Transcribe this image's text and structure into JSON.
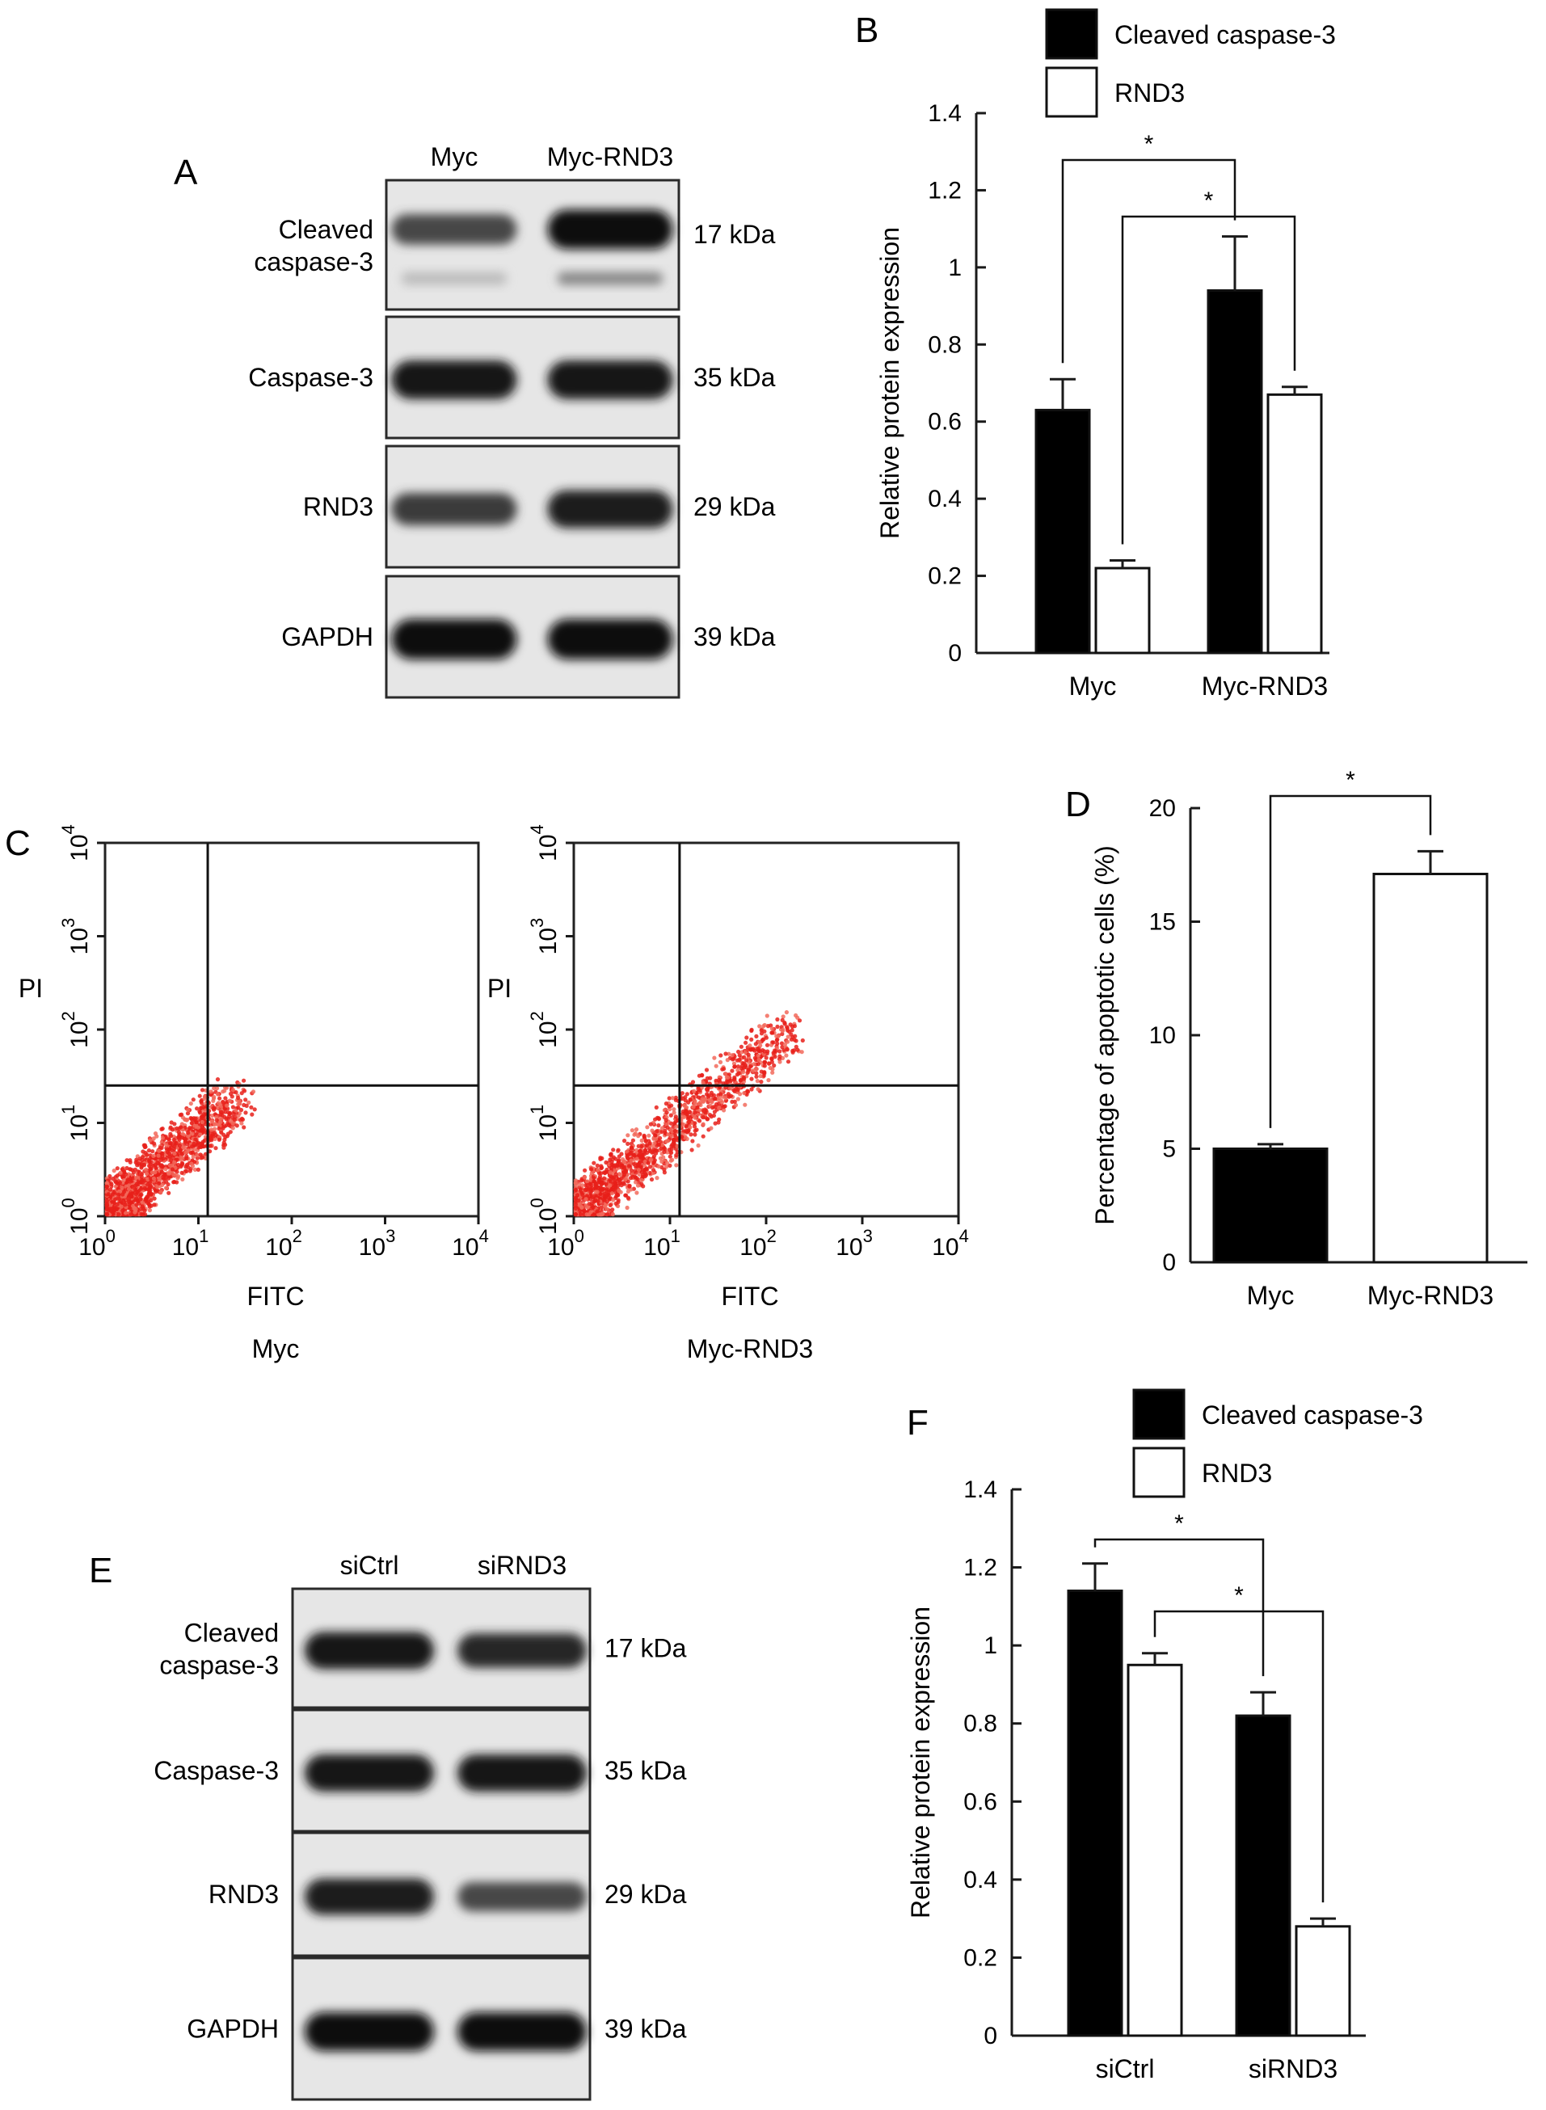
{
  "figure": {
    "panel_letters": [
      "A",
      "B",
      "C",
      "D",
      "E",
      "F"
    ]
  },
  "panel_a": {
    "lanes": [
      "Myc",
      "Myc-RND3"
    ],
    "rows": [
      {
        "label_line1": "Cleaved",
        "label_line2": "caspase-3",
        "kda": "17 kDa",
        "intensity": [
          0.45,
          0.95
        ],
        "extra_band": [
          0.1,
          0.55
        ]
      },
      {
        "label_line1": "Caspase-3",
        "label_line2": "",
        "kda": "35 kDa",
        "intensity": [
          0.9,
          0.9
        ]
      },
      {
        "label_line1": "RND3",
        "label_line2": "",
        "kda": "29 kDa",
        "intensity": [
          0.55,
          0.85
        ]
      },
      {
        "label_line1": "GAPDH",
        "label_line2": "",
        "kda": "39 kDa",
        "intensity": [
          1.0,
          1.0
        ]
      }
    ]
  },
  "panel_e": {
    "lanes": [
      "siCtrl",
      "siRND3"
    ],
    "rows": [
      {
        "label_line1": "Cleaved",
        "label_line2": "caspase-3",
        "kda": "17 kDa",
        "intensity": [
          0.9,
          0.75
        ]
      },
      {
        "label_line1": "Caspase-3",
        "label_line2": "",
        "kda": "35 kDa",
        "intensity": [
          0.9,
          0.9
        ]
      },
      {
        "label_line1": "RND3",
        "label_line2": "",
        "kda": "29 kDa",
        "intensity": [
          0.85,
          0.45
        ]
      },
      {
        "label_line1": "GAPDH",
        "label_line2": "",
        "kda": "39 kDa",
        "intensity": [
          1.0,
          1.0
        ]
      }
    ]
  },
  "panel_c": {
    "xlabel": "FITC",
    "ylabel": "PI",
    "tick_exponents": [
      "0",
      "1",
      "2",
      "3",
      "4"
    ],
    "tick_base": "10",
    "plots": [
      {
        "title": "Myc",
        "gate_x_log": 1.1,
        "gate_y_log": 1.4,
        "spread": 1.0
      },
      {
        "title": "Myc-RND3",
        "gate_x_log": 1.1,
        "gate_y_log": 1.4,
        "spread": 1.6
      }
    ]
  },
  "chart_data": [
    {
      "panel": "B",
      "type": "bar",
      "categories": [
        "Myc",
        "Myc-RND3"
      ],
      "series": [
        {
          "name": "Cleaved caspase-3",
          "values": [
            0.63,
            0.94
          ],
          "errors": [
            0.08,
            0.14
          ],
          "color": "#000000"
        },
        {
          "name": "RND3",
          "values": [
            0.22,
            0.67
          ],
          "errors": [
            0.02,
            0.02
          ],
          "color": "#ffffff"
        }
      ],
      "ylabel": "Relative protein expression",
      "ylim": [
        0,
        1.4
      ],
      "yticks": [
        "0",
        "0.2",
        "0.4",
        "0.6",
        "0.8",
        "1",
        "1.2",
        "1.4"
      ],
      "legend": "top",
      "significance": [
        "*",
        "*"
      ]
    },
    {
      "panel": "D",
      "type": "bar",
      "categories": [
        "Myc",
        "Myc-RND3"
      ],
      "series": [
        {
          "values": [
            5.0,
            17.1
          ],
          "errors": [
            0.2,
            1.0
          ],
          "colors": [
            "#000000",
            "#ffffff"
          ]
        }
      ],
      "ylabel": "Percentage of apoptotic cells (%)",
      "ylim": [
        0,
        20
      ],
      "yticks": [
        "0",
        "5",
        "10",
        "15",
        "20"
      ],
      "significance": [
        "*"
      ]
    },
    {
      "panel": "F",
      "type": "bar",
      "categories": [
        "siCtrl",
        "siRND3"
      ],
      "series": [
        {
          "name": "Cleaved caspase-3",
          "values": [
            1.14,
            0.82
          ],
          "errors": [
            0.07,
            0.06
          ],
          "color": "#000000"
        },
        {
          "name": "RND3",
          "values": [
            0.95,
            0.28
          ],
          "errors": [
            0.03,
            0.02
          ],
          "color": "#ffffff"
        }
      ],
      "ylabel": "Relative protein expression",
      "ylim": [
        0,
        1.4
      ],
      "yticks": [
        "0",
        "0.2",
        "0.4",
        "0.6",
        "0.8",
        "1",
        "1.2",
        "1.4"
      ],
      "legend": "top",
      "significance": [
        "*",
        "*"
      ]
    }
  ]
}
